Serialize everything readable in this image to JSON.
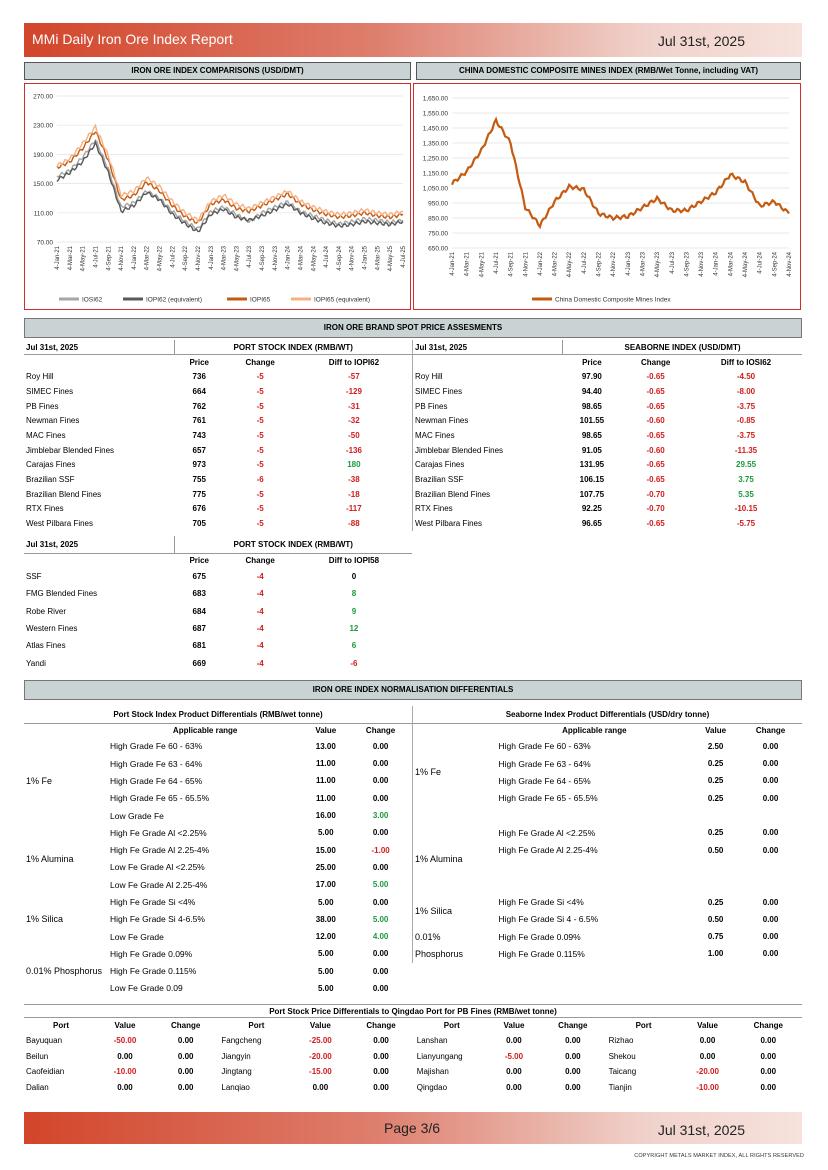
{
  "header": {
    "title": "MMi Daily Iron Ore Index Report",
    "date": "Jul 31st, 2025"
  },
  "footer": {
    "page": "Page 3/6",
    "date": "Jul 31st, 2025",
    "copyright": "COPYRIGHT METALS MARKET INDEX, ALL RIGHTS RESERVED"
  },
  "chart_data": [
    {
      "type": "line",
      "title": "IRON ORE INDEX COMPARISONS (USD/DMT)",
      "x": [
        "4-Jan-21",
        "4-Mar-21",
        "4-May-21",
        "4-Jul-21",
        "4-Sep-21",
        "4-Nov-21",
        "4-Jan-22",
        "4-Mar-22",
        "4-May-22",
        "4-Jul-22",
        "4-Sep-22",
        "4-Nov-22",
        "4-Jan-23",
        "4-Mar-23",
        "4-May-23",
        "4-Jul-23",
        "4-Sep-23",
        "4-Nov-23",
        "4-Jan-24",
        "4-Mar-24",
        "4-May-24",
        "4-Jul-24",
        "4-Sep-24",
        "4-Nov-24",
        "4-Jan-25",
        "4-Mar-25",
        "4-May-25",
        "4-Jul-25"
      ],
      "yticks": [
        "70.00",
        "110.00",
        "150.00",
        "190.00",
        "230.00",
        "270.00"
      ],
      "ylim": [
        70,
        270
      ],
      "series": [
        {
          "name": "IOSI62",
          "color": "#a6a6a6",
          "values": [
            160,
            168,
            186,
            210,
            170,
            118,
            124,
            140,
            130,
            112,
            98,
            88,
            112,
            118,
            108,
            98,
            110,
            118,
            125,
            112,
            106,
            100,
            95,
            98,
            102,
            100,
            97,
            100
          ]
        },
        {
          "name": "IOPI62 (equivalent)",
          "color": "#595959",
          "values": [
            155,
            165,
            180,
            205,
            165,
            112,
            120,
            138,
            128,
            108,
            95,
            84,
            108,
            115,
            104,
            100,
            106,
            114,
            122,
            110,
            102,
            96,
            92,
            94,
            98,
            96,
            94,
            98
          ]
        },
        {
          "name": "IOPI65",
          "color": "#c55a11",
          "values": [
            172,
            180,
            198,
            222,
            182,
            128,
            134,
            152,
            140,
            120,
            105,
            96,
            122,
            128,
            116,
            112,
            120,
            128,
            136,
            122,
            114,
            108,
            104,
            106,
            110,
            106,
            104,
            108
          ]
        },
        {
          "name": "IOPI65 (equivalent)",
          "color": "#f4b183",
          "values": [
            175,
            184,
            205,
            228,
            188,
            134,
            140,
            158,
            146,
            126,
            110,
            100,
            126,
            134,
            122,
            116,
            124,
            132,
            140,
            126,
            118,
            112,
            108,
            110,
            114,
            110,
            108,
            112
          ]
        }
      ]
    },
    {
      "type": "line",
      "title": "CHINA DOMESTIC COMPOSITE MINES INDEX (RMB/Wet Tonne, including VAT)",
      "x": [
        "4-Jan-21",
        "4-Mar-21",
        "4-May-21",
        "4-Jul-21",
        "4-Sep-21",
        "4-Nov-21",
        "4-Jan-22",
        "4-Mar-22",
        "4-May-22",
        "4-Jul-22",
        "4-Sep-22",
        "4-Nov-22",
        "4-Jan-23",
        "4-Mar-23",
        "4-May-23",
        "4-Jul-23",
        "4-Sep-23",
        "4-Nov-23",
        "4-Jan-24",
        "4-Mar-24",
        "4-May-24",
        "4-Jul-24",
        "4-Sep-24",
        "4-Nov-24"
      ],
      "yticks": [
        "650.00",
        "750.00",
        "850.00",
        "950.00",
        "1,050.00",
        "1,150.00",
        "1,250.00",
        "1,350.00",
        "1,450.00",
        "1,550.00",
        "1,650.00"
      ],
      "ylim": [
        650,
        1650
      ],
      "series": [
        {
          "name": "China Domestic Composite Mines Index",
          "color": "#c55a11",
          "values": [
            1080,
            1160,
            1300,
            1500,
            1350,
            920,
            800,
            960,
            1060,
            1040,
            880,
            850,
            860,
            920,
            980,
            900,
            900,
            960,
            1020,
            1140,
            1090,
            930,
            960,
            880
          ]
        }
      ]
    }
  ],
  "spot": {
    "title": "IRON ORE BRAND SPOT PRICE ASSESMENTS",
    "left": {
      "date": "Jul 31st, 2025",
      "index": "PORT STOCK INDEX (RMB/WT)",
      "cols": [
        "Price",
        "Change",
        "Diff to IOPI62"
      ],
      "rows": [
        [
          "Roy Hill",
          "736",
          "-5",
          "-57"
        ],
        [
          "SIMEC Fines",
          "664",
          "-5",
          "-129"
        ],
        [
          "PB Fines",
          "762",
          "-5",
          "-31"
        ],
        [
          "Newman Fines",
          "761",
          "-5",
          "-32"
        ],
        [
          "MAC Fines",
          "743",
          "-5",
          "-50"
        ],
        [
          "Jimblebar Blended Fines",
          "657",
          "-5",
          "-136"
        ],
        [
          "Carajas Fines",
          "973",
          "-5",
          "180"
        ],
        [
          "Brazilian SSF",
          "755",
          "-6",
          "-38"
        ],
        [
          "Brazilian Blend Fines",
          "775",
          "-5",
          "-18"
        ],
        [
          "RTX Fines",
          "676",
          "-5",
          "-117"
        ],
        [
          "West Pilbara Fines",
          "705",
          "-5",
          "-88"
        ]
      ]
    },
    "right": {
      "date": "Jul 31st, 2025",
      "index": "SEABORNE INDEX (USD/DMT)",
      "cols": [
        "Price",
        "Change",
        "Diff to IOSI62"
      ],
      "rows": [
        [
          "Roy Hill",
          "97.90",
          "-0.65",
          "-4.50"
        ],
        [
          "SIMEC Fines",
          "94.40",
          "-0.65",
          "-8.00"
        ],
        [
          "PB Fines",
          "98.65",
          "-0.65",
          "-3.75"
        ],
        [
          "Newman Fines",
          "101.55",
          "-0.60",
          "-0.85"
        ],
        [
          "MAC Fines",
          "98.65",
          "-0.65",
          "-3.75"
        ],
        [
          "Jimblebar Blended Fines",
          "91.05",
          "-0.60",
          "-11.35"
        ],
        [
          "Carajas Fines",
          "131.95",
          "-0.65",
          "29.55"
        ],
        [
          "Brazilian SSF",
          "106.15",
          "-0.65",
          "3.75"
        ],
        [
          "Brazilian Blend Fines",
          "107.75",
          "-0.70",
          "5.35"
        ],
        [
          "RTX Fines",
          "92.25",
          "-0.70",
          "-10.15"
        ],
        [
          "West Pilbara Fines",
          "96.65",
          "-0.65",
          "-5.75"
        ]
      ]
    },
    "lower": {
      "date": "Jul 31st, 2025",
      "index": "PORT STOCK INDEX (RMB/WT)",
      "cols": [
        "Price",
        "Change",
        "Diff to IOPI58"
      ],
      "rows": [
        [
          "SSF",
          "675",
          "-4",
          "0"
        ],
        [
          "FMG Blended Fines",
          "683",
          "-4",
          "8"
        ],
        [
          "Robe River",
          "684",
          "-4",
          "9"
        ],
        [
          "Western Fines",
          "687",
          "-4",
          "12"
        ],
        [
          "Atlas Fines",
          "681",
          "-4",
          "6"
        ],
        [
          "Yandi",
          "669",
          "-4",
          "-6"
        ]
      ]
    }
  },
  "norm": {
    "title": "IRON ORE INDEX NORMALISATION DIFFERENTIALS",
    "left_title": "Port Stock Index Product Differentials (RMB/wet tonne)",
    "right_title": "Seaborne Index Product Differentials (USD/dry tonne)",
    "cols": [
      "Applicable range",
      "Value",
      "Change"
    ],
    "groups": {
      "fe": "1% Fe",
      "al": "1% Alumina",
      "si": "1% Silica",
      "p1": "0.01%",
      "p2": "Phosphorus",
      "p_full": "0.01% Phosphorus"
    },
    "left_rows": [
      [
        "High Grade Fe 60 - 63%",
        "13.00",
        "0.00"
      ],
      [
        "High Grade Fe 63 - 64%",
        "11.00",
        "0.00"
      ],
      [
        "High Grade Fe 64 - 65%",
        "11.00",
        "0.00"
      ],
      [
        "High Grade Fe 65 - 65.5%",
        "11.00",
        "0.00"
      ],
      [
        "Low Grade Fe",
        "16.00",
        "3.00"
      ],
      [
        "High Fe Grade Al <2.25%",
        "5.00",
        "0.00"
      ],
      [
        "High Fe Grade Al 2.25-4%",
        "15.00",
        "-1.00"
      ],
      [
        "Low Fe Grade Al <2.25%",
        "25.00",
        "0.00"
      ],
      [
        "Low Fe Grade Al 2.25-4%",
        "17.00",
        "5.00"
      ],
      [
        "High Fe Grade Si <4%",
        "5.00",
        "0.00"
      ],
      [
        "High Fe Grade Si 4-6.5%",
        "38.00",
        "5.00"
      ],
      [
        "Low Fe Grade",
        "12.00",
        "4.00"
      ],
      [
        "High Fe Grade 0.09%<P<0.115%",
        "5.00",
        "0.00"
      ],
      [
        "High Fe Grade 0.115%<P<0.15%",
        "5.00",
        "0.00"
      ],
      [
        "Low Fe Grade 0.09<P<0.1%",
        "5.00",
        "0.00"
      ]
    ],
    "right_rows": [
      [
        "High Grade Fe 60 - 63%",
        "2.50",
        "0.00"
      ],
      [
        "High Grade Fe 63 - 64%",
        "0.25",
        "0.00"
      ],
      [
        "High Grade Fe 64 - 65%",
        "0.25",
        "0.00"
      ],
      [
        "High Grade Fe 65 - 65.5%",
        "0.25",
        "0.00"
      ],
      [
        "High Fe Grade Al <2.25%",
        "0.25",
        "0.00"
      ],
      [
        "High Fe Grade Al 2.25-4%",
        "0.50",
        "0.00"
      ],
      [
        "High Fe Grade Si <4%",
        "0.25",
        "0.00"
      ],
      [
        "High Fe Grade Si 4 - 6.5%",
        "0.50",
        "0.00"
      ],
      [
        "High Fe Grade 0.09%<P<0.115%",
        "0.75",
        "0.00"
      ],
      [
        "High Fe Grade 0.115%<P<0.15%",
        "1.00",
        "0.00"
      ]
    ]
  },
  "qingdao": {
    "title": "Port Stock Price Differentials to Qingdao Port for PB Fines (RMB/wet tonne)",
    "cols": [
      "Port",
      "Value",
      "Change"
    ],
    "rows": [
      [
        [
          "Bayuquan",
          "-50.00",
          "0.00"
        ],
        [
          "Fangcheng",
          "-25.00",
          "0.00"
        ],
        [
          "Lanshan",
          "0.00",
          "0.00"
        ],
        [
          "Rizhao",
          "0.00",
          "0.00"
        ]
      ],
      [
        [
          "Beilun",
          "0.00",
          "0.00"
        ],
        [
          "Jiangyin",
          "-20.00",
          "0.00"
        ],
        [
          "Lianyungang",
          "-5.00",
          "0.00"
        ],
        [
          "Shekou",
          "0.00",
          "0.00"
        ]
      ],
      [
        [
          "Caofeidian",
          "-10.00",
          "0.00"
        ],
        [
          "Jingtang",
          "-15.00",
          "0.00"
        ],
        [
          "Majishan",
          "0.00",
          "0.00"
        ],
        [
          "Taicang",
          "-20.00",
          "0.00"
        ]
      ],
      [
        [
          "Dalian",
          "0.00",
          "0.00"
        ],
        [
          "Lanqiao",
          "0.00",
          "0.00"
        ],
        [
          "Qingdao",
          "0.00",
          "0.00"
        ],
        [
          "Tianjin",
          "-10.00",
          "0.00"
        ]
      ]
    ]
  }
}
